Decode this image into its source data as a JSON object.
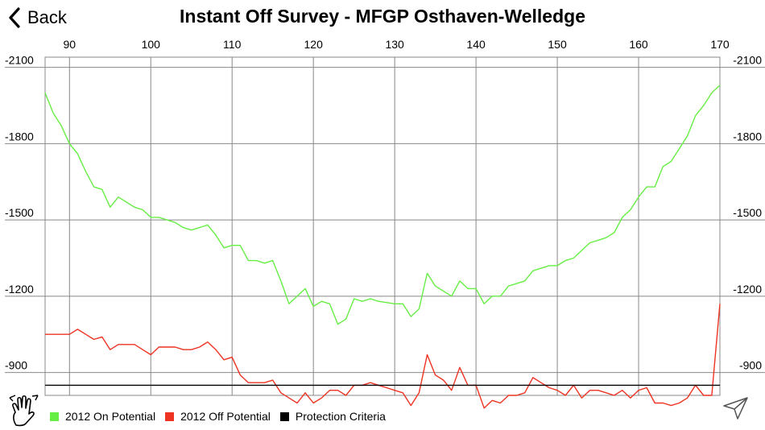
{
  "header": {
    "back_label": "Back",
    "title": "Instant Off Survey - MFGP Osthaven-Welledge"
  },
  "icons": {
    "back": "chevron-left-icon",
    "gesture": "hand-gesture-icon",
    "share": "send-arrow-icon"
  },
  "chart_data": {
    "type": "line",
    "title": "Instant Off Survey - MFGP Osthaven-Welledge",
    "xlim": [
      87,
      170
    ],
    "ylim": [
      -2140,
      -810
    ],
    "y_reversed": true,
    "x_ticks": [
      90,
      100,
      110,
      120,
      130,
      140,
      150,
      160,
      170
    ],
    "y_ticks": [
      -2100,
      -1800,
      -1500,
      -1200,
      -900
    ],
    "x_axis_position": "top",
    "y_axis_position": "left-and-right",
    "grid": true,
    "legend_position": "bottom-left",
    "series": [
      {
        "name": "2012 On Potential",
        "color": "#66ee44",
        "x": [
          87,
          88,
          89,
          90,
          91,
          92,
          93,
          94,
          95,
          96,
          97,
          98,
          99,
          100,
          101,
          102,
          103,
          104,
          105,
          106,
          107,
          108,
          109,
          110,
          111,
          112,
          113,
          114,
          115,
          116,
          117,
          118,
          119,
          120,
          121,
          122,
          123,
          124,
          125,
          126,
          127,
          128,
          129,
          130,
          131,
          132,
          133,
          134,
          135,
          136,
          137,
          138,
          139,
          140,
          141,
          142,
          143,
          144,
          145,
          146,
          147,
          148,
          149,
          150,
          151,
          152,
          153,
          154,
          155,
          156,
          157,
          158,
          159,
          160,
          161,
          162,
          163,
          164,
          165,
          166,
          167,
          168,
          169,
          170
        ],
        "values": [
          -2000,
          -1920,
          -1870,
          -1800,
          -1760,
          -1690,
          -1630,
          -1620,
          -1550,
          -1590,
          -1570,
          -1550,
          -1540,
          -1510,
          -1510,
          -1500,
          -1490,
          -1470,
          -1460,
          -1470,
          -1480,
          -1440,
          -1390,
          -1400,
          -1400,
          -1340,
          -1340,
          -1330,
          -1340,
          -1260,
          -1170,
          -1200,
          -1230,
          -1160,
          -1180,
          -1170,
          -1090,
          -1110,
          -1190,
          -1180,
          -1190,
          -1180,
          -1175,
          -1170,
          -1170,
          -1120,
          -1150,
          -1290,
          -1240,
          -1220,
          -1200,
          -1260,
          -1230,
          -1230,
          -1170,
          -1200,
          -1200,
          -1240,
          -1250,
          -1260,
          -1300,
          -1310,
          -1320,
          -1320,
          -1340,
          -1350,
          -1380,
          -1410,
          -1420,
          -1430,
          -1450,
          -1510,
          -1540,
          -1590,
          -1630,
          -1630,
          -1710,
          -1730,
          -1780,
          -1830,
          -1910,
          -1950,
          -2000,
          -2030
        ]
      },
      {
        "name": "2012 Off Potential",
        "color": "#ee3322",
        "x": [
          87,
          88,
          89,
          90,
          91,
          92,
          93,
          94,
          95,
          96,
          97,
          98,
          99,
          100,
          101,
          102,
          103,
          104,
          105,
          106,
          107,
          108,
          109,
          110,
          111,
          112,
          113,
          114,
          115,
          116,
          117,
          118,
          119,
          120,
          121,
          122,
          123,
          124,
          125,
          126,
          127,
          128,
          129,
          130,
          131,
          132,
          133,
          134,
          135,
          136,
          137,
          138,
          139,
          140,
          141,
          142,
          143,
          144,
          145,
          146,
          147,
          148,
          149,
          150,
          151,
          152,
          153,
          154,
          155,
          156,
          157,
          158,
          159,
          160,
          161,
          162,
          163,
          164,
          165,
          166,
          167,
          168,
          169,
          170
        ],
        "values": [
          -1050,
          -1050,
          -1050,
          -1050,
          -1070,
          -1050,
          -1030,
          -1040,
          -990,
          -1010,
          -1010,
          -1010,
          -990,
          -970,
          -1000,
          -1000,
          -1000,
          -990,
          -990,
          -1000,
          -1020,
          -990,
          -950,
          -960,
          -890,
          -860,
          -860,
          -860,
          -870,
          -820,
          -800,
          -780,
          -820,
          -780,
          -800,
          -830,
          -830,
          -810,
          -850,
          -850,
          -860,
          -850,
          -840,
          -830,
          -820,
          -770,
          -820,
          -970,
          -890,
          -870,
          -830,
          -920,
          -850,
          -850,
          -760,
          -790,
          -780,
          -810,
          -810,
          -820,
          -880,
          -860,
          -840,
          -830,
          -810,
          -850,
          -800,
          -830,
          -830,
          -820,
          -810,
          -830,
          -800,
          -830,
          -840,
          -780,
          -780,
          -770,
          -780,
          -800,
          -850,
          -810,
          -810,
          -1170
        ]
      },
      {
        "name": "Protection Criteria",
        "color": "#000000",
        "x": [
          87,
          170
        ],
        "values": [
          -850,
          -850
        ]
      }
    ]
  }
}
